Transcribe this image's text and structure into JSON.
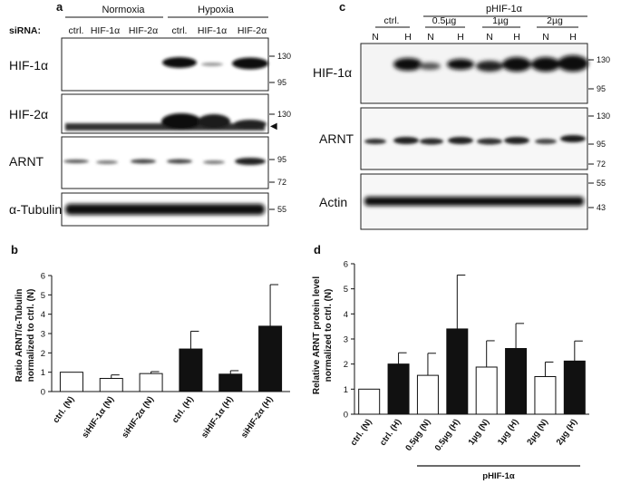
{
  "panel_a": {
    "letter": "a",
    "condition_headers": [
      "Normoxia",
      "Hypoxia"
    ],
    "sirna_label": "siRNA:",
    "lanes": [
      "ctrl.",
      "HIF-1α",
      "HIF-2α",
      "ctrl.",
      "HIF-1α",
      "HIF-2α"
    ],
    "blots": [
      {
        "label": "HIF-1α",
        "markers": [
          "130",
          "95"
        ]
      },
      {
        "label": "HIF-2α",
        "markers": [
          "130"
        ],
        "arrow": "◀"
      },
      {
        "label": "ARNT",
        "markers": [
          "95",
          "72"
        ]
      },
      {
        "label": "α-Tubulin",
        "markers": [
          "55"
        ]
      }
    ]
  },
  "panel_c": {
    "letter": "c",
    "plasmid_header": "pHIF-1α",
    "groups": [
      "ctrl.",
      "0.5µg",
      "1µg",
      "2µg"
    ],
    "lanes": [
      "N",
      "H",
      "N",
      "H",
      "N",
      "H",
      "N",
      "H"
    ],
    "blots": [
      {
        "label": "HIF-1α",
        "markers": [
          "130",
          "95"
        ]
      },
      {
        "label": "ARNT",
        "markers": [
          "130",
          "95",
          "72"
        ]
      },
      {
        "label": "Actin",
        "markers": [
          "55",
          "43"
        ]
      }
    ]
  },
  "chart_data": [
    {
      "panel": "b",
      "type": "bar",
      "ylabel_line1": "Ratio ARNT/α-Tubulin",
      "ylabel_line2": "normalized to ctrl. (N)",
      "ylim": [
        0,
        6
      ],
      "yticks": [
        "0",
        "1",
        "2",
        "3",
        "4",
        "5",
        "6"
      ],
      "categories": [
        "ctrl. (N)",
        "siHIF-1α (N)",
        "siHIF-2α (N)",
        "ctrl. (H)",
        "siHIF-1α (H)",
        "siHIF-2α (H)"
      ],
      "values": [
        1.0,
        0.68,
        0.93,
        2.2,
        0.9,
        3.38
      ],
      "errors": [
        0.0,
        0.18,
        0.1,
        0.92,
        0.18,
        2.15
      ],
      "fills": [
        "#ffffff",
        "#ffffff",
        "#ffffff",
        "#111111",
        "#111111",
        "#111111"
      ]
    },
    {
      "panel": "d",
      "type": "bar",
      "ylabel_line1": "Relative ARNT protein level",
      "ylabel_line2": "normalized to ctrl. (N)",
      "ylim": [
        0,
        6
      ],
      "yticks": [
        "0",
        "1",
        "2",
        "3",
        "4",
        "5",
        "6"
      ],
      "categories": [
        "ctrl. (N)",
        "ctrl. (H)",
        "0.5µg (N)",
        "0.5µg (H)",
        "1µg (N)",
        "1µg (H)",
        "2µg (N)",
        "2µg (H)"
      ],
      "values": [
        1.0,
        2.0,
        1.55,
        3.4,
        1.88,
        2.62,
        1.5,
        2.12
      ],
      "errors": [
        0.0,
        0.45,
        0.88,
        2.15,
        1.05,
        1.0,
        0.58,
        0.8
      ],
      "fills": [
        "#ffffff",
        "#111111",
        "#ffffff",
        "#111111",
        "#ffffff",
        "#111111",
        "#ffffff",
        "#111111"
      ],
      "bracket_label": "pHIF-1α"
    }
  ]
}
